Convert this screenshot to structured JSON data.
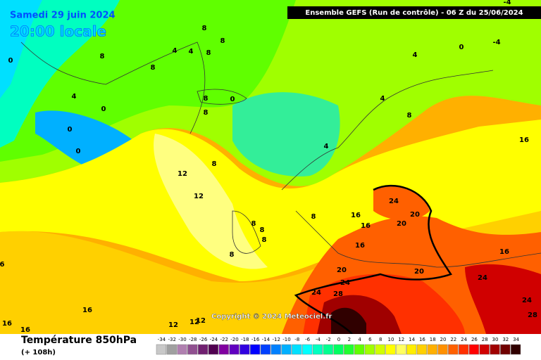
{
  "header": {
    "date": "Samedi 29 juin 2024",
    "local_time": "20:00 locale",
    "run": "Ensemble GEFS  (Run de contrôle)  -  06 Z du 25/06/2024"
  },
  "copyright": "Copyright © 2024 Meteociel.fr",
  "legend": {
    "title": "Température 850hPa",
    "lead": "(+ 108h)",
    "ticks": [
      -34,
      -32,
      -30,
      -28,
      -26,
      -24,
      -22,
      -20,
      -18,
      -16,
      -14,
      -12,
      -10,
      -8,
      -6,
      -4,
      -2,
      0,
      2,
      4,
      6,
      8,
      10,
      12,
      14,
      16,
      18,
      20,
      22,
      24,
      26,
      28,
      30,
      32,
      34
    ],
    "colors": [
      "#c8c8c8",
      "#a0a0a0",
      "#b080b0",
      "#905090",
      "#702070",
      "#500050",
      "#8000a0",
      "#6000c0",
      "#3000e0",
      "#0000ff",
      "#0040ff",
      "#0080ff",
      "#00b0ff",
      "#00e0ff",
      "#00ffff",
      "#00ffc0",
      "#00ff90",
      "#00ff60",
      "#20ff30",
      "#60ff00",
      "#a0ff00",
      "#d0ff00",
      "#ffff00",
      "#ffff60",
      "#ffee00",
      "#ffd000",
      "#ffb000",
      "#ff9000",
      "#ff6000",
      "#ff3000",
      "#ff0000",
      "#d00000",
      "#a00000",
      "#700000",
      "#300000"
    ]
  },
  "contour_labels": [
    8,
    8,
    8,
    4,
    4,
    8,
    8,
    0,
    4,
    0,
    0,
    0,
    8,
    8,
    0,
    4,
    0,
    -4,
    -4,
    4,
    8,
    4,
    16,
    12,
    12,
    8,
    8,
    8,
    8,
    8,
    8,
    16,
    24,
    20,
    20,
    16,
    16,
    20,
    24,
    20,
    24,
    28,
    16,
    24,
    24,
    28,
    16,
    16,
    6,
    16,
    12,
    12,
    12
  ]
}
